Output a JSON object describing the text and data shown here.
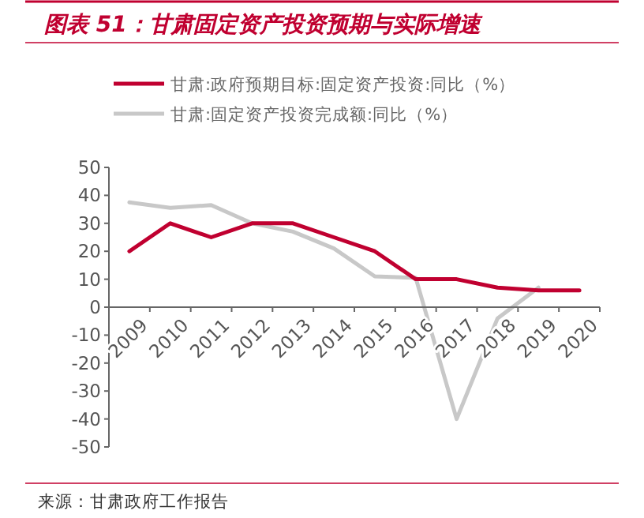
{
  "chart_data": {
    "type": "line",
    "title": "图表 51：甘肃固定资产投资预期与实际增速",
    "categories": [
      "2009",
      "2010",
      "2011",
      "2012",
      "2013",
      "2014",
      "2015",
      "2016",
      "2017",
      "2018",
      "2019",
      "2020"
    ],
    "series": [
      {
        "name": "甘肃:政府预期目标:固定资产投资:同比（%）",
        "color": "#c00030",
        "values": [
          20,
          30,
          25,
          30,
          30,
          25,
          20,
          10,
          10,
          7,
          6,
          6
        ]
      },
      {
        "name": "甘肃:固定资产投资完成额:同比（%）",
        "color": "#c8c8c8",
        "values": [
          37.5,
          35.5,
          36.5,
          30,
          27,
          21,
          11,
          10.5,
          -40,
          -4,
          7,
          null
        ]
      }
    ],
    "ylim": [
      -50,
      50
    ],
    "yticks": [
      -50,
      -40,
      -30,
      -20,
      -10,
      0,
      10,
      20,
      30,
      40,
      50
    ],
    "legend": "top",
    "grid": false,
    "marker": "none",
    "line_style": "solid",
    "annotations": [
      "来源：甘肃政府工作报告"
    ]
  }
}
